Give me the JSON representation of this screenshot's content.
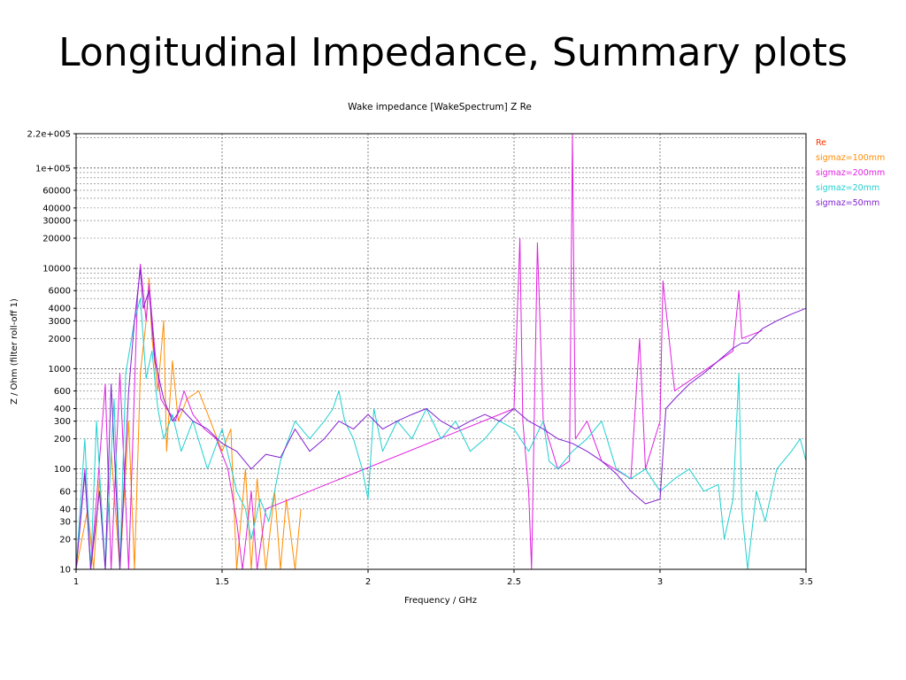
{
  "slide": {
    "title": "Longitudinal Impedance, Summary plots"
  },
  "chart_data": {
    "type": "line",
    "title": "Wake impedance [WakeSpectrum] Z Re",
    "xlabel": "Frequency / GHz",
    "ylabel": "Z / Ohm (filter roll-off 1)",
    "xlim": [
      1,
      3.5
    ],
    "ylim": [
      10,
      220000
    ],
    "yscale": "log",
    "grid": true,
    "legend_position": "right",
    "legend_title": "Re",
    "x_ticks": [
      1,
      1.5,
      2,
      2.5,
      3,
      3.5
    ],
    "x_tick_labels": [
      "1",
      "1.5",
      "2",
      "2.5",
      "3",
      "3.5"
    ],
    "y_ticks": [
      10,
      20,
      30,
      40,
      60,
      100,
      200,
      300,
      400,
      600,
      1000,
      2000,
      3000,
      4000,
      6000,
      10000,
      20000,
      30000,
      40000,
      60000,
      100000,
      220000
    ],
    "y_tick_labels": [
      "10",
      "20",
      "30",
      "40",
      "60",
      "100",
      "200",
      "300",
      "400",
      "600",
      "1000",
      "2000",
      "3000",
      "4000",
      "6000",
      "10000",
      "20000",
      "30000",
      "40000",
      "60000",
      "1e+005",
      "2.2e+005"
    ],
    "series": [
      {
        "name": "sigmaz=100mm",
        "color": "#ff8c00",
        "x": [
          1.0,
          1.04,
          1.06,
          1.08,
          1.1,
          1.12,
          1.15,
          1.18,
          1.2,
          1.22,
          1.24,
          1.25,
          1.26,
          1.28,
          1.3,
          1.31,
          1.33,
          1.35,
          1.38,
          1.42,
          1.46,
          1.5,
          1.53,
          1.55,
          1.58,
          1.6,
          1.62,
          1.65,
          1.68,
          1.7,
          1.72,
          1.75,
          1.77
        ],
        "y": [
          10,
          40,
          10,
          80,
          10,
          150,
          10,
          300,
          10,
          900,
          3000,
          8000,
          2000,
          600,
          3000,
          150,
          1200,
          300,
          500,
          600,
          300,
          150,
          250,
          10,
          100,
          10,
          80,
          10,
          60,
          10,
          50,
          10,
          40
        ]
      },
      {
        "name": "sigmaz=200mm",
        "color": "#e020e0",
        "x": [
          1.0,
          1.03,
          1.05,
          1.07,
          1.1,
          1.12,
          1.15,
          1.18,
          1.21,
          1.22,
          1.24,
          1.25,
          1.27,
          1.29,
          1.31,
          1.34,
          1.37,
          1.4,
          1.44,
          1.48,
          1.52,
          1.55,
          1.57,
          1.6,
          1.62,
          1.65,
          2.5,
          2.52,
          2.53,
          2.55,
          2.56,
          2.58,
          2.6,
          2.65,
          2.69,
          2.7,
          2.71,
          2.75,
          2.8,
          2.9,
          2.93,
          2.95,
          3.0,
          3.01,
          3.05,
          3.25,
          3.27,
          3.28,
          3.35
        ],
        "y": [
          10,
          100,
          10,
          50,
          700,
          10,
          900,
          10,
          5000,
          11000,
          3000,
          7000,
          1500,
          500,
          400,
          300,
          600,
          350,
          250,
          200,
          100,
          30,
          10,
          60,
          10,
          40,
          400,
          20000,
          300,
          60,
          10,
          18000,
          300,
          100,
          120,
          220000,
          200,
          300,
          120,
          80,
          2000,
          100,
          300,
          7500,
          600,
          1500,
          6000,
          2000,
          2400
        ]
      },
      {
        "name": "sigmaz=20mm",
        "color": "#20d0d0",
        "x": [
          1.0,
          1.03,
          1.05,
          1.07,
          1.1,
          1.13,
          1.15,
          1.17,
          1.2,
          1.22,
          1.24,
          1.26,
          1.28,
          1.3,
          1.33,
          1.36,
          1.4,
          1.45,
          1.5,
          1.55,
          1.58,
          1.6,
          1.63,
          1.66,
          1.7,
          1.75,
          1.8,
          1.85,
          1.88,
          1.9,
          1.92,
          1.95,
          1.98,
          2.0,
          2.02,
          2.05,
          2.1,
          2.15,
          2.2,
          2.25,
          2.3,
          2.35,
          2.4,
          2.45,
          2.5,
          2.55,
          2.6,
          2.62,
          2.65,
          2.7,
          2.75,
          2.8,
          2.85,
          2.9,
          2.95,
          3.0,
          3.05,
          3.1,
          3.15,
          3.2,
          3.22,
          3.25,
          3.27,
          3.28,
          3.3,
          3.33,
          3.36,
          3.4,
          3.45,
          3.48,
          3.5
        ],
        "y": [
          10,
          200,
          10,
          300,
          10,
          500,
          10,
          900,
          3000,
          5000,
          800,
          1500,
          400,
          200,
          350,
          150,
          300,
          100,
          250,
          60,
          40,
          20,
          50,
          30,
          120,
          300,
          200,
          300,
          400,
          600,
          300,
          200,
          100,
          50,
          400,
          150,
          300,
          200,
          400,
          200,
          300,
          150,
          200,
          300,
          250,
          150,
          300,
          120,
          100,
          150,
          200,
          300,
          100,
          80,
          100,
          60,
          80,
          100,
          60,
          70,
          20,
          50,
          900,
          40,
          10,
          60,
          30,
          100,
          150,
          200,
          120
        ]
      },
      {
        "name": "sigmaz=50mm",
        "color": "#8020d0",
        "x": [
          1.0,
          1.03,
          1.05,
          1.08,
          1.1,
          1.12,
          1.15,
          1.18,
          1.2,
          1.22,
          1.23,
          1.25,
          1.27,
          1.3,
          1.33,
          1.36,
          1.4,
          1.45,
          1.5,
          1.55,
          1.6,
          1.65,
          1.7,
          1.75,
          1.8,
          1.85,
          1.9,
          1.95,
          2.0,
          2.05,
          2.1,
          2.15,
          2.2,
          2.25,
          2.3,
          2.35,
          2.4,
          2.45,
          2.5,
          2.55,
          2.6,
          2.65,
          2.7,
          2.75,
          2.8,
          2.85,
          2.9,
          2.95,
          3.0,
          3.02,
          3.05,
          3.1,
          3.15,
          3.2,
          3.25,
          3.28,
          3.3,
          3.35,
          3.4,
          3.45,
          3.5
        ],
        "y": [
          10,
          90,
          10,
          60,
          10,
          700,
          10,
          600,
          3000,
          10000,
          4000,
          6000,
          1200,
          500,
          300,
          400,
          300,
          250,
          180,
          150,
          100,
          140,
          130,
          250,
          150,
          200,
          300,
          250,
          350,
          250,
          300,
          350,
          400,
          300,
          250,
          300,
          350,
          300,
          400,
          300,
          250,
          200,
          180,
          150,
          120,
          90,
          60,
          45,
          50,
          400,
          500,
          700,
          900,
          1200,
          1600,
          1800,
          1800,
          2500,
          3000,
          3500,
          4000
        ]
      }
    ]
  }
}
